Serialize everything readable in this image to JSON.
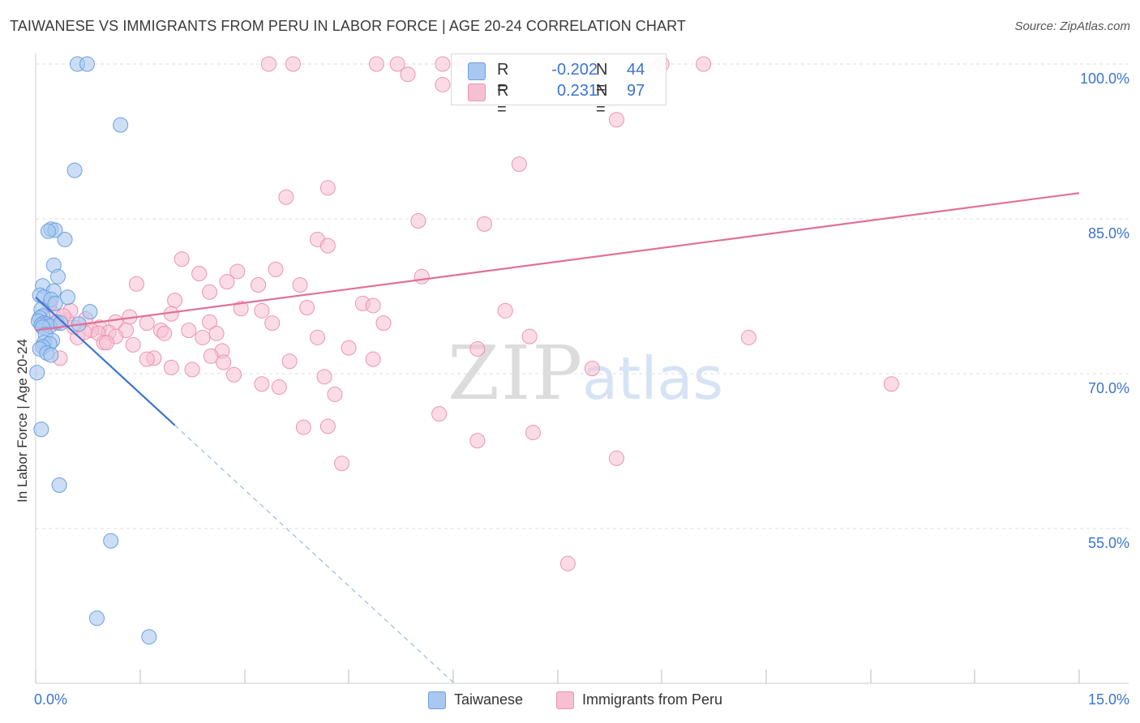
{
  "title": "TAIWANESE VS IMMIGRANTS FROM PERU IN LABOR FORCE | AGE 20-24 CORRELATION CHART",
  "source": "Source: ZipAtlas.com",
  "watermark": {
    "zip": "ZIP",
    "atlas": "atlas"
  },
  "legend_top": [
    {
      "r_label": "R =",
      "r_value": "-0.202",
      "n_label": "N =",
      "n_value": "44"
    },
    {
      "r_label": "R =",
      "r_value": "0.231",
      "n_label": "N =",
      "n_value": "97"
    }
  ],
  "legend_bottom": [
    {
      "label": "Taiwanese"
    },
    {
      "label": "Immigrants from Peru"
    }
  ],
  "colors": {
    "blue_fill": "#a9c8f0",
    "blue_stroke": "#6d9fe0",
    "blue_line": "#3b74d0",
    "pink_fill": "#f7bfd2",
    "pink_stroke": "#ec93b2",
    "pink_line": "#e0709a",
    "tick_text": "#3b74d0",
    "grid": "#dddddd"
  },
  "chart_data": {
    "type": "scatter",
    "title": "TAIWANESE VS IMMIGRANTS FROM PERU IN LABOR FORCE | AGE 20-24 CORRELATION CHART",
    "xlabel": "",
    "ylabel": "In Labor Force | Age 20-24",
    "xlim": [
      0,
      15
    ],
    "ylim": [
      40,
      101
    ],
    "x_tick_labels": [
      "0.0%",
      "15.0%"
    ],
    "y_ticks": [
      55,
      70,
      85,
      100
    ],
    "y_tick_labels": [
      "55.0%",
      "70.0%",
      "85.0%",
      "100.0%"
    ],
    "grid": true,
    "series": [
      {
        "name": "Taiwanese",
        "r": -0.202,
        "n": 44,
        "trend": {
          "x0": 0.0,
          "y0": 77.4,
          "x1": 2.0,
          "y1": 65.0,
          "dashed_to_x": 6.0,
          "dashed_to_y": 40.1
        },
        "points": [
          [
            0.6,
            100.0
          ],
          [
            0.74,
            100.0
          ],
          [
            1.22,
            94.1
          ],
          [
            0.56,
            89.7
          ],
          [
            0.22,
            84.0
          ],
          [
            0.28,
            83.9
          ],
          [
            0.18,
            83.8
          ],
          [
            0.42,
            83.0
          ],
          [
            0.26,
            80.5
          ],
          [
            0.32,
            79.4
          ],
          [
            0.1,
            78.5
          ],
          [
            0.26,
            78.0
          ],
          [
            0.06,
            77.6
          ],
          [
            0.12,
            77.4
          ],
          [
            0.46,
            77.4
          ],
          [
            0.22,
            77.2
          ],
          [
            0.28,
            76.8
          ],
          [
            0.08,
            76.2
          ],
          [
            0.78,
            76.0
          ],
          [
            0.1,
            75.6
          ],
          [
            0.06,
            75.4
          ],
          [
            0.04,
            75.1
          ],
          [
            0.3,
            75.0
          ],
          [
            0.12,
            74.9
          ],
          [
            0.16,
            74.8
          ],
          [
            0.08,
            74.7
          ],
          [
            0.2,
            74.6
          ],
          [
            0.1,
            74.5
          ],
          [
            0.36,
            74.9
          ],
          [
            0.62,
            74.8
          ],
          [
            0.14,
            73.8
          ],
          [
            0.24,
            73.2
          ],
          [
            0.12,
            73.0
          ],
          [
            0.2,
            72.9
          ],
          [
            0.1,
            72.6
          ],
          [
            0.06,
            72.4
          ],
          [
            0.16,
            72.0
          ],
          [
            0.22,
            71.8
          ],
          [
            0.02,
            70.1
          ],
          [
            0.08,
            64.6
          ],
          [
            0.34,
            59.2
          ],
          [
            1.08,
            53.8
          ],
          [
            0.88,
            46.3
          ],
          [
            1.63,
            44.5
          ]
        ]
      },
      {
        "name": "Immigrants from Peru",
        "r": 0.231,
        "n": 97,
        "trend": {
          "x0": 0.0,
          "y0": 74.2,
          "x1": 15.0,
          "y1": 87.5
        },
        "points": [
          [
            3.35,
            100.0
          ],
          [
            3.7,
            100.0
          ],
          [
            4.9,
            100.0
          ],
          [
            5.2,
            100.0
          ],
          [
            5.85,
            100.0
          ],
          [
            6.15,
            100.0
          ],
          [
            9.0,
            100.0
          ],
          [
            9.6,
            100.0
          ],
          [
            5.35,
            99.0
          ],
          [
            5.85,
            98.0
          ],
          [
            8.35,
            94.6
          ],
          [
            6.95,
            90.3
          ],
          [
            4.2,
            88.0
          ],
          [
            3.6,
            87.1
          ],
          [
            5.5,
            84.8
          ],
          [
            6.45,
            84.5
          ],
          [
            4.05,
            83.0
          ],
          [
            4.2,
            82.4
          ],
          [
            2.1,
            81.1
          ],
          [
            3.45,
            80.1
          ],
          [
            2.35,
            79.7
          ],
          [
            2.9,
            79.9
          ],
          [
            5.55,
            79.4
          ],
          [
            1.45,
            78.7
          ],
          [
            2.75,
            78.9
          ],
          [
            3.2,
            78.6
          ],
          [
            3.8,
            78.6
          ],
          [
            2.5,
            77.9
          ],
          [
            2.0,
            77.1
          ],
          [
            4.7,
            76.8
          ],
          [
            4.85,
            76.6
          ],
          [
            2.95,
            76.3
          ],
          [
            3.9,
            76.4
          ],
          [
            3.25,
            76.1
          ],
          [
            6.75,
            76.1
          ],
          [
            1.95,
            75.8
          ],
          [
            1.35,
            75.5
          ],
          [
            0.72,
            75.3
          ],
          [
            1.15,
            75.0
          ],
          [
            2.5,
            75.0
          ],
          [
            3.4,
            74.9
          ],
          [
            5.0,
            74.9
          ],
          [
            1.6,
            74.9
          ],
          [
            0.92,
            74.5
          ],
          [
            0.55,
            74.5
          ],
          [
            0.8,
            74.2
          ],
          [
            1.8,
            74.2
          ],
          [
            1.3,
            74.2
          ],
          [
            2.2,
            74.2
          ],
          [
            1.05,
            74.0
          ],
          [
            0.9,
            73.9
          ],
          [
            1.15,
            73.6
          ],
          [
            1.85,
            73.9
          ],
          [
            2.6,
            73.9
          ],
          [
            2.4,
            73.5
          ],
          [
            4.05,
            73.5
          ],
          [
            7.1,
            73.6
          ],
          [
            10.25,
            73.5
          ],
          [
            0.98,
            73.0
          ],
          [
            1.02,
            73.0
          ],
          [
            1.4,
            72.8
          ],
          [
            6.35,
            72.4
          ],
          [
            4.5,
            72.5
          ],
          [
            2.68,
            72.2
          ],
          [
            2.52,
            71.7
          ],
          [
            1.7,
            71.5
          ],
          [
            1.6,
            71.4
          ],
          [
            3.65,
            71.2
          ],
          [
            2.7,
            71.1
          ],
          [
            4.85,
            71.4
          ],
          [
            1.95,
            70.6
          ],
          [
            2.25,
            70.4
          ],
          [
            8.0,
            70.5
          ],
          [
            2.85,
            69.9
          ],
          [
            4.15,
            69.7
          ],
          [
            3.25,
            69.0
          ],
          [
            3.5,
            68.7
          ],
          [
            12.3,
            69.0
          ],
          [
            4.3,
            68.0
          ],
          [
            5.8,
            66.1
          ],
          [
            3.85,
            64.8
          ],
          [
            4.2,
            64.9
          ],
          [
            7.15,
            64.3
          ],
          [
            6.35,
            63.5
          ],
          [
            8.35,
            61.8
          ],
          [
            4.4,
            61.3
          ],
          [
            7.65,
            51.6
          ],
          [
            0.25,
            75.8
          ],
          [
            0.3,
            74.9
          ],
          [
            0.45,
            75.2
          ],
          [
            0.5,
            76.1
          ],
          [
            0.6,
            73.5
          ],
          [
            0.2,
            76.7
          ],
          [
            0.15,
            74.8
          ],
          [
            0.35,
            71.5
          ],
          [
            0.4,
            75.6
          ],
          [
            0.7,
            74.0
          ]
        ]
      }
    ]
  }
}
